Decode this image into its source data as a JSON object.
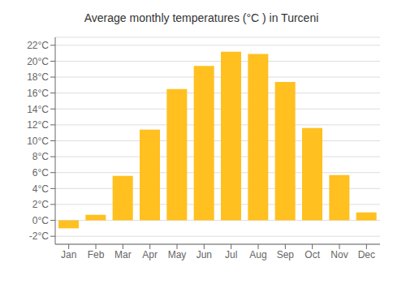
{
  "chart_data": {
    "type": "bar",
    "title": "Average monthly temperatures (°C ) in Turceni",
    "categories": [
      "Jan",
      "Feb",
      "Mar",
      "Apr",
      "May",
      "Jun",
      "Jul",
      "Aug",
      "Sep",
      "Oct",
      "Nov",
      "Dec"
    ],
    "values": [
      -1.0,
      0.7,
      5.6,
      11.4,
      16.5,
      19.4,
      21.2,
      20.9,
      17.4,
      11.6,
      5.7,
      1.0
    ],
    "color": "#FFC020",
    "ylim": [
      -3,
      23
    ],
    "yticks": [
      {
        "value": -2,
        "label": "-2°C"
      },
      {
        "value": 0,
        "label": "0°C"
      },
      {
        "value": 2,
        "label": "2°C"
      },
      {
        "value": 4,
        "label": "4°C"
      },
      {
        "value": 6,
        "label": "6°C"
      },
      {
        "value": 8,
        "label": "8°C"
      },
      {
        "value": 10,
        "label": "10°C"
      },
      {
        "value": 12,
        "label": "12°C"
      },
      {
        "value": 14,
        "label": "14°C"
      },
      {
        "value": 16,
        "label": "16°C"
      },
      {
        "value": 18,
        "label": "18°C"
      },
      {
        "value": 20,
        "label": "20°C"
      },
      {
        "value": 22,
        "label": "22°C"
      }
    ],
    "grid": true
  }
}
